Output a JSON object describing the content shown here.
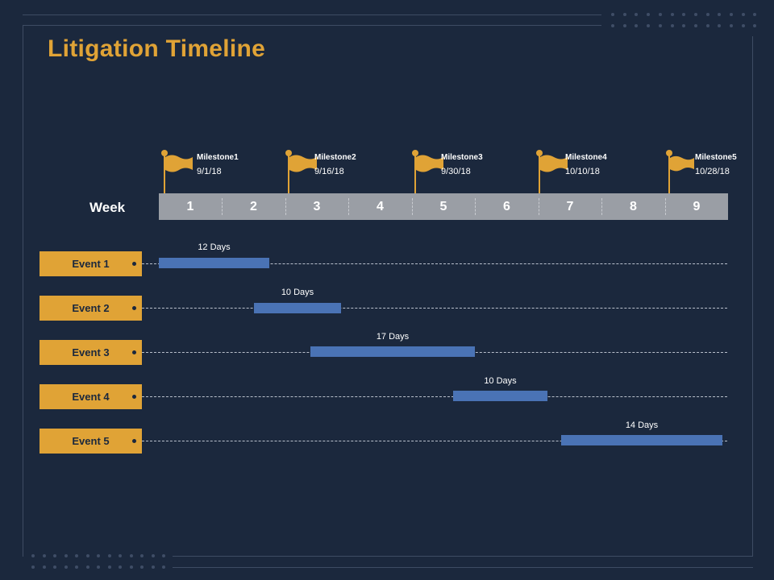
{
  "title": "Litigation Timeline",
  "colors": {
    "background": "#1b283d",
    "accent": "#e0a336",
    "bar": "#4a73b5",
    "week_bar": "#9a9ea5"
  },
  "milestones": [
    {
      "name": "Milestone1",
      "date": "9/1/18"
    },
    {
      "name": "Milestone2",
      "date": "9/16/18"
    },
    {
      "name": "Milestone3",
      "date": "9/30/18"
    },
    {
      "name": "Milestone4",
      "date": "10/10/18"
    },
    {
      "name": "Milestone5",
      "date": "10/28/18"
    }
  ],
  "week_label": "Week",
  "weeks": [
    "1",
    "2",
    "3",
    "4",
    "5",
    "6",
    "7",
    "8",
    "9"
  ],
  "events": [
    {
      "label": "Event 1",
      "duration": "12 Days"
    },
    {
      "label": "Event 2",
      "duration": "10 Days"
    },
    {
      "label": "Event 3",
      "duration": "17 Days"
    },
    {
      "label": "Event 4",
      "duration": "10 Days"
    },
    {
      "label": "Event 5",
      "duration": "14 Days"
    }
  ]
}
